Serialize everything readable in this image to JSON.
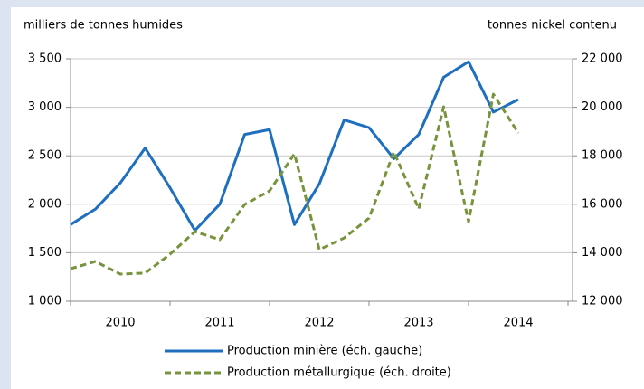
{
  "chart_data": {
    "type": "line",
    "y_label": "milliers de tonnes humides",
    "y2_label": "tonnes nickel contenu",
    "categories": [
      null,
      null,
      "2010",
      null,
      null,
      null,
      "2011",
      null,
      null,
      null,
      "2012",
      null,
      null,
      null,
      "2013",
      null,
      null,
      null,
      "2014"
    ],
    "series": [
      {
        "name": "Production minière (éch. gauche)",
        "color": "#1f6fbf",
        "line_style": "solid",
        "values": [
          1790,
          1950,
          2220,
          2580,
          2170,
          1730,
          2000,
          2720,
          2770,
          1790,
          2210,
          2870,
          2790,
          2470,
          2720,
          3310,
          3470,
          2950,
          3080
        ]
      },
      {
        "name": "Production métallurgique (éch. droite)",
        "color": "#77933c",
        "line_style": "dashed",
        "axis": "y2",
        "values": [
          13340,
          13640,
          13120,
          13160,
          13940,
          14870,
          14540,
          15990,
          16550,
          18080,
          14130,
          14610,
          15430,
          18160,
          15810,
          20020,
          15280,
          20540,
          18940
        ]
      }
    ],
    "ylim": [
      1000,
      3500
    ],
    "yticks": [
      {
        "value": 1000,
        "label": "1 000"
      },
      {
        "value": 1500,
        "label": "1 500"
      },
      {
        "value": 2000,
        "label": "2 000"
      },
      {
        "value": 2500,
        "label": "2 500"
      },
      {
        "value": 3000,
        "label": "3 000"
      },
      {
        "value": 3500,
        "label": "3 500"
      }
    ],
    "y2lim": [
      12000,
      22000
    ],
    "y2ticks": [
      {
        "value": 12000,
        "label": "12 000"
      },
      {
        "value": 14000,
        "label": "14 000"
      },
      {
        "value": 16000,
        "label": "16 000"
      },
      {
        "value": 18000,
        "label": "18 000"
      },
      {
        "value": 20000,
        "label": "20 000"
      },
      {
        "value": 22000,
        "label": "22 000"
      }
    ],
    "grid": true
  }
}
